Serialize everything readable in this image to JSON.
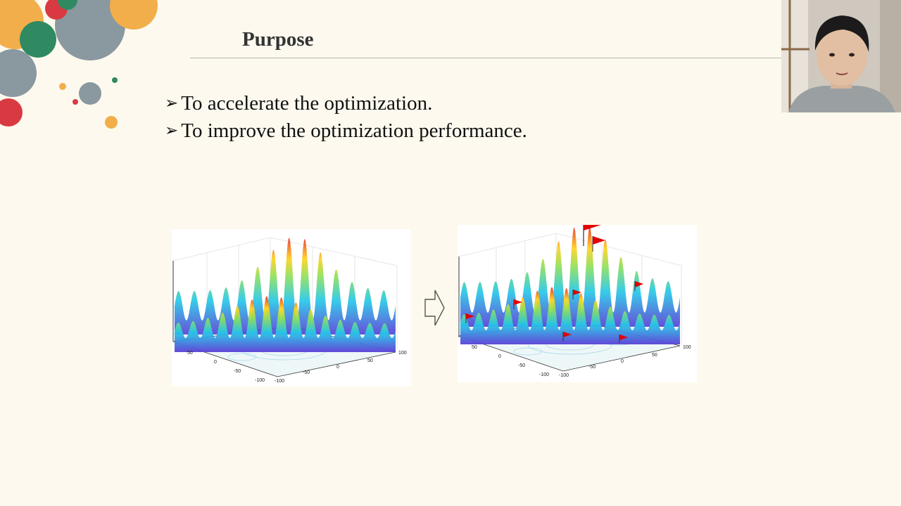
{
  "slide": {
    "title": "Purpose",
    "bullets": [
      "To accelerate the optimization.",
      "To improve the optimization performance."
    ],
    "bullet_marker": "➢"
  },
  "figure_left": {
    "tick_labels": {
      "a": "50",
      "b": "0",
      "c": "-50",
      "d": "-100",
      "e": "-100",
      "f": "-50",
      "g": "0",
      "h": "50",
      "i": "100"
    }
  },
  "figure_right": {
    "tick_labels": {
      "a": "50",
      "b": "0",
      "c": "-50",
      "d": "-100",
      "e": "-100",
      "f": "-50",
      "g": "0",
      "h": "50",
      "i": "100"
    }
  },
  "colors": {
    "background": "#fdf9ee",
    "flag": "#e00000",
    "accent_orange": "#f2ae4a",
    "accent_green": "#2f8a62",
    "accent_red": "#d93a42",
    "accent_gray": "#8a98a0"
  },
  "icons": {
    "transition_arrow": "right-arrow-outline-icon",
    "flag": "red-flag-icon"
  }
}
